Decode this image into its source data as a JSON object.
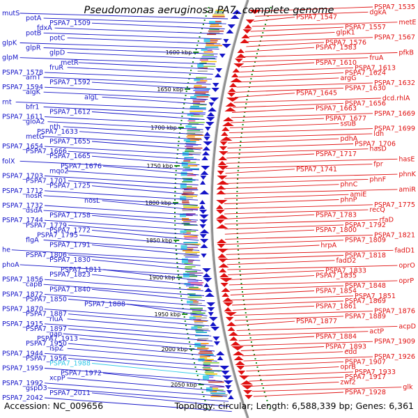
{
  "title": "Pseudomonas aeruginosa PA7, complete genome",
  "footer": {
    "accession": "Accession: NC_009656",
    "summary": "Topology: circular; Length: 6,588,339 bp; Genes: 6,361"
  },
  "colors": {
    "forward": "#1414c8",
    "reverse": "#e01010",
    "highlight": "#30c8e8",
    "backbone": "#909090",
    "tick": "#1a8a1a"
  },
  "kbp_labels": [
    "1600 kbp",
    "1650 kbp",
    "1700 kbp",
    "1750 kbp",
    "1800 kbp",
    "1850 kbp",
    "1900 kbp",
    "1950 kbp",
    "2000 kbp",
    "2050 kbp"
  ],
  "left_labels": [
    "mutS",
    "potA",
    "PSPA7_1509",
    "fdxA",
    "potB",
    "potC",
    "glpK",
    "glpR",
    "glpD",
    "glpM",
    "metR",
    "fruR",
    "PSPA7_1578",
    "arnT",
    "PSPA7_1592",
    "PSPA7_1594",
    "algK",
    "algL",
    "rnt",
    "bfr1",
    "PSPA7_1612",
    "PSPA7_1611",
    "gloA2",
    "nth",
    "PSPA7_1633",
    "metG",
    "PSPA7_1655",
    "PSPA7_1654",
    "PSPA7_1666",
    "PSPA7_1665",
    "folX",
    "PSPA7_1676",
    "mqo2",
    "PSPA7_1703",
    "PSPA7_1701",
    "PSPA7_1725",
    "PSPA7_1712",
    "nosR",
    "nosL",
    "PSPA7_1732",
    "dsdA",
    "PSPA7_1758",
    "PSPA7_1744",
    "PSPA7_1779",
    "PSPA7_1772",
    "PSPA7_1795",
    "flgA",
    "PSPA7_1791",
    "he",
    "PSPA7_1806",
    "PSPA7_1830",
    "phoA",
    "PSPA7_1811",
    "PSPA7_1823",
    "PSPA7_1856",
    "capB",
    "PSPA7_1840",
    "PSPA7_1872",
    "PSPA7_1850",
    "PSPA7_1888",
    "PSPA7_1870",
    "PSPA7_1887",
    "rluA",
    "PSPA7_1915",
    "PSPA7_1897",
    "gap",
    "PSPA7_1913",
    "PSPA7_1950",
    "ispZ",
    "PSPA7_1944",
    "PSPA7_1956",
    "PSPA7_1988",
    "PSPA7_1959",
    "PSPA7_1972",
    "xcpP",
    "PSPA7_1992",
    "gspD3",
    "PSPA7_2011",
    "PSPA7_2042"
  ],
  "right_labels": [
    "PSPA7_1535",
    "dgkA",
    "PSPA7_1547",
    "metE",
    "PSPA7_1557",
    "glpK1",
    "PSPA7_1567",
    "PSPA7_1576",
    "PSPA7_1583",
    "pfkB",
    "fruA",
    "PSPA7_1610",
    "PSPA7_1613",
    "PSPA7_1624",
    "argG",
    "PSPA7_1632",
    "PSPA7_1630",
    "PSPA7_1645",
    "dcd.rhlA",
    "PSPA7_1656",
    "PSPA7_1663",
    "PSPA7_1669",
    "PSPA7_1677",
    "ssuB",
    "PSPA7_1699",
    "ldh",
    "pdhA",
    "PSPA7_1706",
    "hasD",
    "PSPA7_1717",
    "hasE",
    "fpr",
    "PSPA7_1741",
    "phnK",
    "phnF",
    "phnC",
    "amiR",
    "amiE",
    "phnP",
    "PSPA7_1775",
    "recQ",
    "PSPA7_1783",
    "rfaD",
    "PSPA7_1792",
    "PSPA7_1800",
    "PSPA7_1821",
    "PSPA7_1809",
    "hrpA",
    "fadD1",
    "PSPA7_1818",
    "fadD2",
    "oprO",
    "PSPA7_1833",
    "PSPA7_1835",
    "oprP",
    "PSPA7_1848",
    "PSPA7_1854",
    "PSPA7_1851",
    "PSPA7_1869",
    "PSPA7_1861",
    "PSPA7_1876",
    "PSPA7_1889",
    "PSPA7_1877",
    "acpD",
    "actP",
    "PSPA7_1884",
    "PSPA7_1909",
    "PSPA7_1893",
    "edd",
    "PSPA7_1926",
    "PSPA7_1907",
    "oprB",
    "PSPA7_1933",
    "PSPA7_1917",
    "zwf2",
    "glk",
    "PSPA7_1928"
  ]
}
